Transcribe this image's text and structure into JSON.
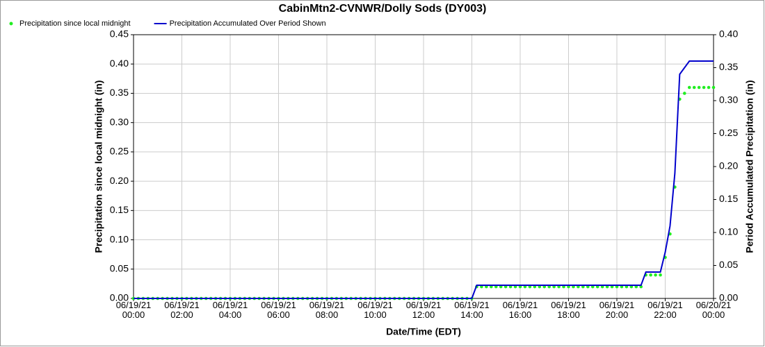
{
  "chart_data": {
    "type": "line",
    "title": "CabinMtn2-CVNWR/Dolly Sods (DY003)",
    "x_label": "Date/Time (EDT)",
    "y_label": "Precipitation since local midnight (in)",
    "y2_label": "Period Accumulated Precipitation (in)",
    "grid": true,
    "legend": "top-left",
    "x": [
      0,
      12,
      24,
      36,
      48,
      60,
      72,
      84,
      96,
      108,
      120,
      132,
      144,
      156,
      168,
      180,
      192,
      204,
      216,
      228,
      240,
      252,
      264,
      276,
      288,
      300,
      312,
      324,
      336,
      348,
      360,
      372,
      384,
      396,
      408,
      420,
      432,
      444,
      456,
      468,
      480,
      492,
      504,
      516,
      528,
      540,
      552,
      564,
      576,
      588,
      600,
      612,
      624,
      636,
      648,
      660,
      672,
      684,
      696,
      708,
      720,
      732,
      744,
      756,
      768,
      780,
      792,
      804,
      816,
      828,
      840,
      852,
      864,
      876,
      888,
      900,
      912,
      924,
      936,
      948,
      960,
      972,
      984,
      996,
      1008,
      1020,
      1032,
      1044,
      1056,
      1068,
      1080,
      1092,
      1104,
      1116,
      1128,
      1140,
      1152,
      1164,
      1176,
      1188,
      1200,
      1212,
      1224,
      1236,
      1248,
      1260,
      1272,
      1284,
      1296,
      1308,
      1320,
      1332,
      1344,
      1356,
      1368,
      1380,
      1392,
      1404,
      1416,
      1428,
      1440
    ],
    "series": [
      {
        "name": "Precipitation since local midnight",
        "color": "#22ee22",
        "mode": "markers",
        "values": [
          0,
          0,
          0,
          0,
          0,
          0,
          0,
          0,
          0,
          0,
          0,
          0,
          0,
          0,
          0,
          0,
          0,
          0,
          0,
          0,
          0,
          0,
          0,
          0,
          0,
          0,
          0,
          0,
          0,
          0,
          0,
          0,
          0,
          0,
          0,
          0,
          0,
          0,
          0,
          0,
          0,
          0,
          0,
          0,
          0,
          0,
          0,
          0,
          0,
          0,
          0,
          0,
          0,
          0,
          0,
          0,
          0,
          0,
          0,
          0,
          0,
          0,
          0,
          0,
          0,
          0,
          0,
          0,
          0,
          0,
          0,
          0.02,
          0.02,
          0.02,
          0.02,
          0.02,
          0.02,
          0.02,
          0.02,
          0.02,
          0.02,
          0.02,
          0.02,
          0.02,
          0.02,
          0.02,
          0.02,
          0.02,
          0.02,
          0.02,
          0.02,
          0.02,
          0.02,
          0.02,
          0.02,
          0.02,
          0.02,
          0.02,
          0.02,
          0.02,
          0.02,
          0.02,
          0.02,
          0.02,
          0.02,
          0.02,
          0.04,
          0.04,
          0.04,
          0.04,
          0.07,
          0.11,
          0.19,
          0.34,
          0.35,
          0.36,
          0.36,
          0.36,
          0.36,
          0.36,
          0.36
        ]
      },
      {
        "name": "Precipitation Accumulated Over Period Shown",
        "color": "#0000cc",
        "mode": "lines",
        "axis": "y2",
        "values": [
          0,
          0,
          0,
          0,
          0,
          0,
          0,
          0,
          0,
          0,
          0,
          0,
          0,
          0,
          0,
          0,
          0,
          0,
          0,
          0,
          0,
          0,
          0,
          0,
          0,
          0,
          0,
          0,
          0,
          0,
          0,
          0,
          0,
          0,
          0,
          0,
          0,
          0,
          0,
          0,
          0,
          0,
          0,
          0,
          0,
          0,
          0,
          0,
          0,
          0,
          0,
          0,
          0,
          0,
          0,
          0,
          0,
          0,
          0,
          0,
          0,
          0,
          0,
          0,
          0,
          0,
          0,
          0,
          0,
          0,
          0,
          0.02,
          0.02,
          0.02,
          0.02,
          0.02,
          0.02,
          0.02,
          0.02,
          0.02,
          0.02,
          0.02,
          0.02,
          0.02,
          0.02,
          0.02,
          0.02,
          0.02,
          0.02,
          0.02,
          0.02,
          0.02,
          0.02,
          0.02,
          0.02,
          0.02,
          0.02,
          0.02,
          0.02,
          0.02,
          0.02,
          0.02,
          0.02,
          0.02,
          0.02,
          0.02,
          0.04,
          0.04,
          0.04,
          0.04,
          0.07,
          0.11,
          0.19,
          0.34,
          0.35,
          0.36,
          0.36,
          0.36,
          0.36,
          0.36,
          0.36
        ]
      }
    ],
    "xlim": [
      0,
      1440
    ],
    "xticks": [
      {
        "value": 0,
        "label": "06/19/21\n00:00"
      },
      {
        "value": 120,
        "label": "06/19/21\n02:00"
      },
      {
        "value": 240,
        "label": "06/19/21\n04:00"
      },
      {
        "value": 360,
        "label": "06/19/21\n06:00"
      },
      {
        "value": 480,
        "label": "06/19/21\n08:00"
      },
      {
        "value": 600,
        "label": "06/19/21\n10:00"
      },
      {
        "value": 720,
        "label": "06/19/21\n12:00"
      },
      {
        "value": 840,
        "label": "06/19/21\n14:00"
      },
      {
        "value": 960,
        "label": "06/19/21\n16:00"
      },
      {
        "value": 1080,
        "label": "06/19/21\n18:00"
      },
      {
        "value": 1200,
        "label": "06/19/21\n20:00"
      },
      {
        "value": 1320,
        "label": "06/19/21\n22:00"
      },
      {
        "value": 1440,
        "label": "06/20/21\n00:00"
      }
    ],
    "ylim": [
      0,
      0.45
    ],
    "yticks": [
      {
        "value": 0,
        "label": "0.00"
      },
      0.05,
      {
        "value": 0.1,
        "label": "0.10"
      },
      0.15,
      {
        "value": 0.2,
        "label": "0.20"
      },
      0.25,
      {
        "value": 0.3,
        "label": "0.30"
      },
      0.35,
      {
        "value": 0.4,
        "label": "0.40"
      },
      0.45
    ],
    "y2lim": [
      0,
      0.4
    ],
    "y2ticks": [
      {
        "value": 0,
        "label": "0.00"
      },
      0.05,
      {
        "value": 0.1,
        "label": "0.10"
      },
      0.15,
      {
        "value": 0.2,
        "label": "0.20"
      },
      0.25,
      {
        "value": 0.3,
        "label": "0.30"
      },
      0.35,
      {
        "value": 0.4,
        "label": "0.40"
      }
    ]
  }
}
